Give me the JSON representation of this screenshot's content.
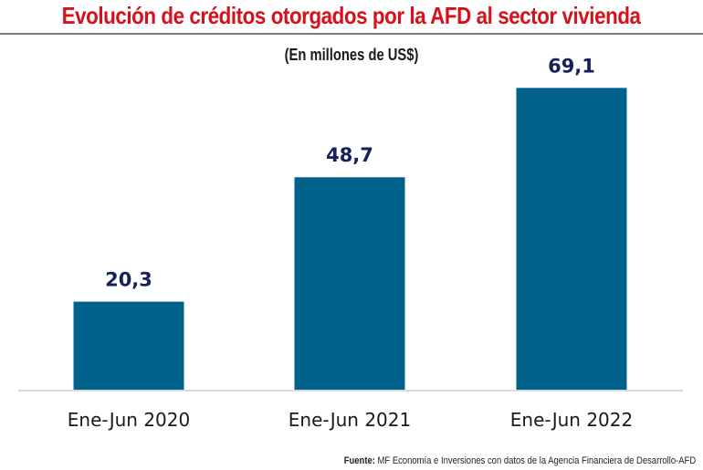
{
  "header": {
    "title": "Evolución de créditos otorgados por la AFD al sector vivienda",
    "subtitle": "(En millones de US$)"
  },
  "footer": {
    "source_label": "Fuente:",
    "source_text": "MF Economía e Inversiones con datos de la Agencia Financiera de Desarrollo-AFD"
  },
  "colors": {
    "title": "#d6111b",
    "bar": "#00628b",
    "data_label": "#14215c",
    "axis": "#d9d9d9"
  },
  "chart_data": {
    "type": "bar",
    "title": "Evolución de créditos otorgados por la AFD al sector vivienda",
    "subtitle": "(En millones de US$)",
    "xlabel": "",
    "ylabel": "",
    "categories": [
      "Ene-Jun 2020",
      "Ene-Jun 2021",
      "Ene-Jun 2022"
    ],
    "values": [
      20.3,
      48.7,
      69.1
    ],
    "data_labels": [
      "20,3",
      "48,7",
      "69,1"
    ],
    "ylim": [
      0,
      70
    ],
    "grid": false,
    "legend": "none"
  }
}
